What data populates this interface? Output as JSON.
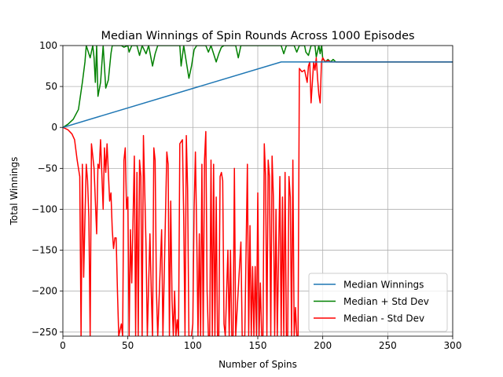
{
  "chart_data": {
    "type": "line",
    "title": "Median Winnings of Spin Rounds Across 1000 Episodes",
    "xlabel": "Number of Spins",
    "ylabel": "Total Winnings",
    "xlim": [
      0,
      300
    ],
    "ylim": [
      -255,
      100
    ],
    "xticks": [
      0,
      50,
      100,
      150,
      200,
      250,
      300
    ],
    "yticks": [
      100,
      50,
      0,
      -50,
      -100,
      -150,
      -200,
      -250
    ],
    "ytick_labels": [
      "100",
      "50",
      "0",
      "−50",
      "−100",
      "−150",
      "−200",
      "−250"
    ],
    "grid": true,
    "legend_position": "lower-right",
    "series": [
      {
        "name": "Median Winnings",
        "color": "#1f77b4",
        "points": [
          [
            0,
            0
          ],
          [
            168,
            80
          ],
          [
            300,
            80
          ]
        ]
      },
      {
        "name": "Median + Std Dev",
        "color": "#008000",
        "points": [
          [
            0,
            0
          ],
          [
            4,
            4
          ],
          [
            8,
            10
          ],
          [
            12,
            22
          ],
          [
            15,
            55
          ],
          [
            17,
            80
          ],
          [
            18,
            100
          ],
          [
            21,
            85
          ],
          [
            23,
            100
          ],
          [
            24,
            85
          ],
          [
            25,
            55
          ],
          [
            26,
            100
          ],
          [
            27,
            38
          ],
          [
            29,
            55
          ],
          [
            31,
            100
          ],
          [
            33,
            48
          ],
          [
            35,
            58
          ],
          [
            37,
            90
          ],
          [
            38,
            100
          ],
          [
            45,
            100
          ],
          [
            47,
            98
          ],
          [
            50,
            100
          ],
          [
            51,
            92
          ],
          [
            53,
            100
          ],
          [
            57,
            100
          ],
          [
            59,
            88
          ],
          [
            61,
            100
          ],
          [
            64,
            90
          ],
          [
            66,
            100
          ],
          [
            69,
            75
          ],
          [
            71,
            90
          ],
          [
            73,
            100
          ],
          [
            90,
            100
          ],
          [
            91,
            75
          ],
          [
            93,
            100
          ],
          [
            97,
            60
          ],
          [
            99,
            75
          ],
          [
            101,
            95
          ],
          [
            103,
            100
          ],
          [
            110,
            100
          ],
          [
            112,
            92
          ],
          [
            114,
            100
          ],
          [
            118,
            80
          ],
          [
            120,
            90
          ],
          [
            122,
            98
          ],
          [
            124,
            100
          ],
          [
            133,
            100
          ],
          [
            135,
            85
          ],
          [
            137,
            100
          ],
          [
            168,
            100
          ],
          [
            170,
            90
          ],
          [
            172,
            100
          ],
          [
            178,
            100
          ],
          [
            180,
            92
          ],
          [
            182,
            100
          ],
          [
            186,
            100
          ],
          [
            187,
            92
          ],
          [
            189,
            88
          ],
          [
            191,
            100
          ],
          [
            194,
            100
          ],
          [
            195,
            86
          ],
          [
            197,
            100
          ],
          [
            198,
            90
          ],
          [
            199,
            100
          ],
          [
            200,
            84
          ],
          [
            202,
            80
          ],
          [
            204,
            83
          ],
          [
            206,
            80
          ],
          [
            208,
            83
          ],
          [
            210,
            80
          ],
          [
            300,
            80
          ]
        ]
      },
      {
        "name": "Median - Std Dev",
        "color": "#ff0000",
        "points": [
          [
            0,
            0
          ],
          [
            4,
            -3
          ],
          [
            7,
            -8
          ],
          [
            9,
            -15
          ],
          [
            11,
            -40
          ],
          [
            13,
            -60
          ],
          [
            14,
            -255
          ],
          [
            15,
            -45
          ],
          [
            16,
            -183
          ],
          [
            17,
            -110
          ],
          [
            18,
            -45
          ],
          [
            19,
            -65
          ],
          [
            20,
            -110
          ],
          [
            21,
            -255
          ],
          [
            22,
            -20
          ],
          [
            24,
            -50
          ],
          [
            25,
            -90
          ],
          [
            26,
            -130
          ],
          [
            27,
            -45
          ],
          [
            28,
            -50
          ],
          [
            29,
            -15
          ],
          [
            31,
            -100
          ],
          [
            32,
            -25
          ],
          [
            33,
            -55
          ],
          [
            34,
            -20
          ],
          [
            36,
            -90
          ],
          [
            37,
            -80
          ],
          [
            38,
            -125
          ],
          [
            39,
            -148
          ],
          [
            40,
            -135
          ],
          [
            41,
            -135
          ],
          [
            42,
            -200
          ],
          [
            43,
            -255
          ],
          [
            45,
            -240
          ],
          [
            46,
            -255
          ],
          [
            47,
            -40
          ],
          [
            48,
            -25
          ],
          [
            49,
            -100
          ],
          [
            50,
            -85
          ],
          [
            51,
            -255
          ],
          [
            52,
            -125
          ],
          [
            53,
            -190
          ],
          [
            55,
            -35
          ],
          [
            56,
            -255
          ],
          [
            57,
            -55
          ],
          [
            58,
            -255
          ],
          [
            59,
            -40
          ],
          [
            60,
            -60
          ],
          [
            61,
            -255
          ],
          [
            62,
            -10
          ],
          [
            64,
            -145
          ],
          [
            65,
            -255
          ],
          [
            67,
            -130
          ],
          [
            68,
            -200
          ],
          [
            69,
            -255
          ],
          [
            70,
            -25
          ],
          [
            71,
            -40
          ],
          [
            72,
            -200
          ],
          [
            73,
            -255
          ],
          [
            76,
            -125
          ],
          [
            77,
            -255
          ],
          [
            80,
            -30
          ],
          [
            81,
            -45
          ],
          [
            82,
            -255
          ],
          [
            83,
            -90
          ],
          [
            84,
            -210
          ],
          [
            85,
            -255
          ],
          [
            86,
            -200
          ],
          [
            87,
            -255
          ],
          [
            88,
            -235
          ],
          [
            89,
            -255
          ],
          [
            90,
            -20
          ],
          [
            92,
            -15
          ],
          [
            93,
            -110
          ],
          [
            94,
            -255
          ],
          [
            95,
            -10
          ],
          [
            96,
            -75
          ],
          [
            97,
            -255
          ],
          [
            99,
            -255
          ],
          [
            100,
            -240
          ],
          [
            101,
            -100
          ],
          [
            102,
            -30
          ],
          [
            103,
            -130
          ],
          [
            104,
            -255
          ],
          [
            105,
            -130
          ],
          [
            106,
            -255
          ],
          [
            107,
            -45
          ],
          [
            108,
            -255
          ],
          [
            109,
            -40
          ],
          [
            110,
            -5
          ],
          [
            111,
            -200
          ],
          [
            112,
            -255
          ],
          [
            113,
            -255
          ],
          [
            114,
            -40
          ],
          [
            115,
            -255
          ],
          [
            116,
            -45
          ],
          [
            117,
            -255
          ],
          [
            118,
            -85
          ],
          [
            119,
            -255
          ],
          [
            120,
            -255
          ],
          [
            121,
            -60
          ],
          [
            122,
            -55
          ],
          [
            123,
            -65
          ],
          [
            124,
            -240
          ],
          [
            125,
            -255
          ],
          [
            127,
            -150
          ],
          [
            128,
            -255
          ],
          [
            129,
            -150
          ],
          [
            130,
            -255
          ],
          [
            131,
            -255
          ],
          [
            132,
            -50
          ],
          [
            133,
            -255
          ],
          [
            137,
            -140
          ],
          [
            138,
            -255
          ],
          [
            140,
            -255
          ],
          [
            142,
            -45
          ],
          [
            143,
            -255
          ],
          [
            144,
            -120
          ],
          [
            145,
            -255
          ],
          [
            146,
            -170
          ],
          [
            147,
            -255
          ],
          [
            148,
            -170
          ],
          [
            149,
            -255
          ],
          [
            150,
            -80
          ],
          [
            151,
            -255
          ],
          [
            152,
            -190
          ],
          [
            153,
            -255
          ],
          [
            154,
            -255
          ],
          [
            155,
            -20
          ],
          [
            156,
            -60
          ],
          [
            157,
            -255
          ],
          [
            158,
            -40
          ],
          [
            159,
            -60
          ],
          [
            160,
            -255
          ],
          [
            161,
            -35
          ],
          [
            162,
            -85
          ],
          [
            163,
            -255
          ],
          [
            164,
            -100
          ],
          [
            165,
            -255
          ],
          [
            167,
            -60
          ],
          [
            168,
            -255
          ],
          [
            169,
            -85
          ],
          [
            170,
            -255
          ],
          [
            171,
            -55
          ],
          [
            172,
            -255
          ],
          [
            173,
            -255
          ],
          [
            174,
            -60
          ],
          [
            175,
            -85
          ],
          [
            176,
            -255
          ],
          [
            177,
            -40
          ],
          [
            178,
            -255
          ],
          [
            179,
            -220
          ],
          [
            180,
            -255
          ],
          [
            181,
            -255
          ],
          [
            182,
            72
          ],
          [
            184,
            68
          ],
          [
            186,
            70
          ],
          [
            188,
            55
          ],
          [
            189,
            75
          ],
          [
            190,
            80
          ],
          [
            191,
            30
          ],
          [
            193,
            80
          ],
          [
            194,
            70
          ],
          [
            195,
            85
          ],
          [
            196,
            60
          ],
          [
            197,
            40
          ],
          [
            198,
            30
          ],
          [
            199,
            80
          ],
          [
            200,
            85
          ],
          [
            202,
            80
          ],
          [
            204,
            82
          ],
          [
            206,
            80
          ],
          [
            300,
            80
          ]
        ]
      }
    ]
  }
}
